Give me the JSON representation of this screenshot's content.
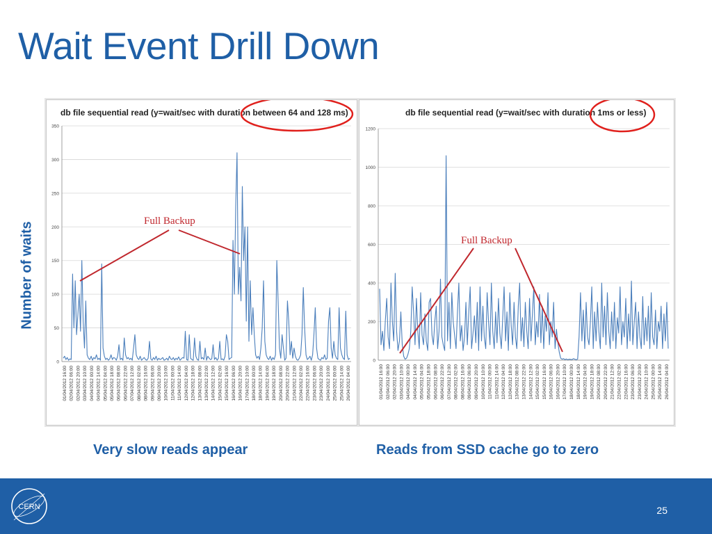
{
  "slide": {
    "title": "Wait Event Drill Down",
    "y_axis_label": "Number of waits",
    "caption_left": "Very slow reads appear",
    "caption_right": "Reads from SSD cache go to zero",
    "page_number": "25",
    "logo_text": "CERN"
  },
  "colors": {
    "accent": "#1f5fa6",
    "series": "#4a7ebb",
    "annotation": "#c0272d",
    "highlight_circle": "#e0201c"
  },
  "chart_data": [
    {
      "type": "line",
      "title_prefix": "db file sequential read (y=wait/sec with duration ",
      "title_highlight": "between 64 and 128 ms)",
      "ylim": [
        0,
        350
      ],
      "yticks": [
        0,
        50,
        100,
        150,
        200,
        250,
        300,
        350
      ],
      "grid": true,
      "annotation": "Full Backup",
      "x_labels": [
        "01/04/2012 16:00",
        "02/04/2012 06:00",
        "02/04/2012 20:00",
        "03/04/2012 10:00",
        "04/04/2012 00:00",
        "04/04/2012 14:00",
        "05/04/2012 04:00",
        "05/04/2012 18:00",
        "06/04/2012 08:00",
        "06/04/2012 22:00",
        "07/04/2012 12:00",
        "08/04/2012 02:00",
        "08/04/2012 16:00",
        "09/04/2012 06:00",
        "09/04/2012 20:00",
        "10/04/2012 10:00",
        "11/04/2012 00:00",
        "11/04/2012 14:00",
        "12/04/2012 04:00",
        "12/04/2012 18:00",
        "13/04/2012 08:00",
        "13/04/2012 22:00",
        "14/04/2012 12:00",
        "15/04/2012 02:00",
        "15/04/2012 16:00",
        "16/04/2012 06:00",
        "16/04/2012 20:00",
        "17/04/2012 10:00",
        "18/04/2012 00:00",
        "18/04/2012 14:00",
        "19/04/2012 04:00",
        "19/04/2012 18:00",
        "20/04/2012 08:00",
        "20/04/2012 22:00",
        "21/04/2012 12:00",
        "22/04/2012 02:00",
        "22/04/2012 16:00",
        "23/04/2012 06:00",
        "23/04/2012 20:00",
        "24/04/2012 10:00",
        "25/04/2012 00:00",
        "25/04/2012 14:00",
        "26/04/2012 04:00"
      ],
      "series": [
        {
          "values": [
            5,
            8,
            3,
            6,
            2,
            4,
            3,
            130,
            50,
            120,
            40,
            70,
            100,
            45,
            150,
            60,
            20,
            90,
            10,
            5,
            3,
            8,
            2,
            6,
            4,
            10,
            3,
            5,
            2,
            145,
            20,
            8,
            3,
            5,
            2,
            4,
            10,
            3,
            6,
            5,
            2,
            8,
            25,
            3,
            5,
            2,
            35,
            10,
            4,
            6,
            3,
            5,
            2,
            20,
            40,
            10,
            5,
            3,
            8,
            2,
            4,
            6,
            3,
            2,
            5,
            30,
            4,
            2,
            6,
            3,
            8,
            2,
            5,
            3,
            4,
            6,
            2,
            3,
            5,
            2,
            8,
            4,
            3,
            6,
            2,
            5,
            3,
            7,
            2,
            4,
            6,
            5,
            45,
            3,
            2,
            40,
            5,
            3,
            2,
            35,
            8,
            3,
            2,
            30,
            4,
            6,
            3,
            20,
            2,
            8,
            5,
            3,
            4,
            25,
            3,
            6,
            2,
            5,
            30,
            3,
            4,
            2,
            8,
            40,
            30,
            3,
            5,
            6,
            180,
            100,
            230,
            310,
            100,
            140,
            90,
            260,
            150,
            200,
            60,
            200,
            30,
            120,
            40,
            80,
            40,
            10,
            5,
            8,
            3,
            20,
            50,
            120,
            30,
            10,
            5,
            3,
            8,
            2,
            6,
            3,
            10,
            150,
            90,
            20,
            5,
            40,
            20,
            2,
            5,
            90,
            60,
            10,
            30,
            5,
            20,
            8,
            3,
            2,
            5,
            10,
            40,
            110,
            50,
            10,
            3,
            5,
            8,
            2,
            10,
            40,
            80,
            20,
            5,
            3,
            2,
            6,
            4,
            10,
            3,
            5,
            60,
            80,
            20,
            5,
            30,
            10,
            5,
            3,
            80,
            20,
            10,
            5,
            3,
            75,
            10,
            3,
            5
          ]
        }
      ]
    },
    {
      "type": "line",
      "title_prefix": "db file sequential read (y=wait/sec with duration ",
      "title_highlight": "1ms or less)",
      "ylim": [
        0,
        1200
      ],
      "yticks": [
        0,
        200,
        400,
        600,
        800,
        1000,
        1200
      ],
      "grid": true,
      "annotation": "Full Backup",
      "x_labels": [
        "01/04/2012 16:00",
        "02/04/2012 06:00",
        "02/04/2012 20:00",
        "03/04/2012 10:00",
        "04/04/2012 00:00",
        "04/04/2012 14:00",
        "05/04/2012 04:00",
        "05/04/2012 18:00",
        "06/04/2012 08:00",
        "06/04/2012 22:00",
        "07/04/2012 12:00",
        "08/04/2012 02:00",
        "08/04/2012 16:00",
        "09/04/2012 06:00",
        "09/04/2012 20:00",
        "10/04/2012 10:00",
        "11/04/2012 00:00",
        "11/04/2012 14:00",
        "12/04/2012 04:00",
        "12/04/2012 18:00",
        "13/04/2012 08:00",
        "13/04/2012 22:00",
        "14/04/2012 12:00",
        "15/04/2012 02:00",
        "15/04/2012 16:00",
        "16/04/2012 06:00",
        "16/04/2012 20:00",
        "17/04/2012 10:00",
        "18/04/2012 00:00",
        "18/04/2012 14:00",
        "19/04/2012 04:00",
        "19/04/2012 18:00",
        "20/04/2012 08:00",
        "20/04/2012 22:00",
        "21/04/2012 12:00",
        "22/04/2012 02:00",
        "22/04/2012 16:00",
        "23/04/2012 06:00",
        "23/04/2012 20:00",
        "24/04/2012 10:00",
        "25/04/2012 00:00",
        "25/04/2012 14:00",
        "26/04/2012 04:00"
      ],
      "series": [
        {
          "values": [
            370,
            80,
            150,
            50,
            200,
            320,
            120,
            60,
            400,
            200,
            100,
            450,
            150,
            50,
            100,
            250,
            80,
            20,
            5,
            10,
            30,
            60,
            150,
            380,
            250,
            80,
            320,
            150,
            60,
            350,
            130,
            80,
            240,
            100,
            50,
            300,
            320,
            130,
            80,
            200,
            280,
            60,
            150,
            420,
            120,
            80,
            50,
            1060,
            100,
            300,
            60,
            350,
            200,
            130,
            60,
            250,
            400,
            100,
            180,
            50,
            120,
            300,
            80,
            250,
            380,
            60,
            140,
            230,
            90,
            300,
            50,
            380,
            100,
            280,
            120,
            60,
            350,
            200,
            80,
            400,
            150,
            60,
            250,
            90,
            320,
            140,
            60,
            220,
            380,
            100,
            250,
            50,
            350,
            180,
            80,
            300,
            120,
            60,
            280,
            400,
            100,
            220,
            70,
            300,
            150,
            60,
            320,
            100,
            240,
            380,
            80,
            200,
            120,
            340,
            90,
            280,
            60,
            230,
            150,
            350,
            80,
            200,
            120,
            300,
            60,
            160,
            90,
            40,
            10,
            5,
            8,
            3,
            6,
            2,
            5,
            4,
            3,
            8,
            5,
            2,
            6,
            120,
            350,
            100,
            260,
            60,
            300,
            120,
            80,
            200,
            380,
            60,
            250,
            100,
            300,
            150,
            60,
            400,
            120,
            280,
            80,
            350,
            150,
            60,
            250,
            100,
            300,
            60,
            220,
            140,
            380,
            80,
            200,
            120,
            320,
            60,
            240,
            100,
            410,
            80,
            200,
            300,
            60,
            250,
            120,
            60,
            330,
            80,
            220,
            100,
            280,
            60,
            350,
            120,
            80,
            260,
            60,
            200,
            150,
            280,
            60,
            240,
            100,
            300,
            60
          ]
        }
      ]
    }
  ]
}
